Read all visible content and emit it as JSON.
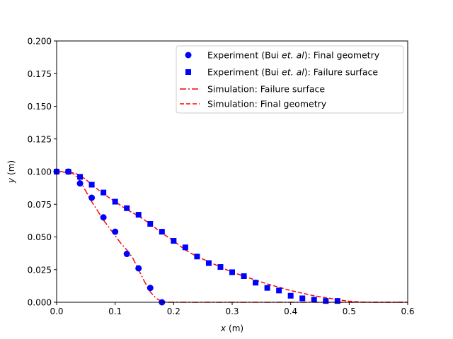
{
  "chart_data": {
    "type": "scatter",
    "xlabel_var": "x",
    "xlabel_unit": "(m)",
    "ylabel_var": "y",
    "ylabel_unit": "(m)",
    "xlim": [
      0,
      0.6
    ],
    "ylim": [
      0,
      0.2
    ],
    "xticks": [
      0.0,
      0.1,
      0.2,
      0.3,
      0.4,
      0.5,
      0.6
    ],
    "xtick_labels": [
      "0.0",
      "0.1",
      "0.2",
      "0.3",
      "0.4",
      "0.5",
      "0.6"
    ],
    "yticks": [
      0.0,
      0.025,
      0.05,
      0.075,
      0.1,
      0.125,
      0.15,
      0.175,
      0.2
    ],
    "ytick_labels": [
      "0.000",
      "0.025",
      "0.050",
      "0.075",
      "0.100",
      "0.125",
      "0.150",
      "0.175",
      "0.200"
    ],
    "grid": false,
    "legend_position": "top-right",
    "series": [
      {
        "legend_prefix": "Experiment (Bui ",
        "legend_italic": "et. al",
        "legend_suffix": "): Final geometry",
        "marker": "circle",
        "color": "#0000ff",
        "x": [
          0.0,
          0.02,
          0.04,
          0.06,
          0.08,
          0.1,
          0.12,
          0.14,
          0.16,
          0.18
        ],
        "y": [
          0.1,
          0.1,
          0.091,
          0.08,
          0.065,
          0.054,
          0.037,
          0.026,
          0.011,
          0.0
        ]
      },
      {
        "legend_prefix": "Experiment (Bui ",
        "legend_italic": "et. al",
        "legend_suffix": "): Failure surface",
        "marker": "square",
        "color": "#0000ff",
        "x": [
          0.0,
          0.02,
          0.04,
          0.06,
          0.08,
          0.1,
          0.12,
          0.14,
          0.16,
          0.18,
          0.2,
          0.22,
          0.24,
          0.26,
          0.28,
          0.3,
          0.32,
          0.34,
          0.36,
          0.38,
          0.4,
          0.42,
          0.44,
          0.46,
          0.48
        ],
        "y": [
          0.1,
          0.1,
          0.096,
          0.09,
          0.084,
          0.077,
          0.072,
          0.067,
          0.06,
          0.054,
          0.047,
          0.042,
          0.035,
          0.03,
          0.027,
          0.023,
          0.02,
          0.015,
          0.011,
          0.009,
          0.005,
          0.003,
          0.002,
          0.001,
          0.001
        ]
      },
      {
        "legend": "Simulation: Failure surface",
        "style": "dashdot",
        "color": "#ff0000",
        "x": [
          0.0,
          0.02,
          0.03,
          0.04,
          0.05,
          0.06,
          0.07,
          0.08,
          0.09,
          0.1,
          0.11,
          0.12,
          0.13,
          0.14,
          0.15,
          0.16,
          0.17,
          0.18,
          0.19,
          0.25,
          0.35,
          0.45,
          0.6
        ],
        "y": [
          0.1,
          0.1,
          0.098,
          0.093,
          0.085,
          0.077,
          0.07,
          0.063,
          0.057,
          0.051,
          0.045,
          0.04,
          0.034,
          0.025,
          0.016,
          0.008,
          0.003,
          0.0005,
          0.0,
          0.0,
          0.0,
          0.0,
          0.0
        ]
      },
      {
        "legend": "Simulation: Final geometry",
        "style": "dashed",
        "color": "#ff0000",
        "x": [
          0.0,
          0.03,
          0.04,
          0.05,
          0.06,
          0.08,
          0.1,
          0.12,
          0.14,
          0.16,
          0.18,
          0.2,
          0.22,
          0.24,
          0.26,
          0.28,
          0.3,
          0.32,
          0.34,
          0.36,
          0.38,
          0.4,
          0.42,
          0.44,
          0.46,
          0.48,
          0.5,
          0.52,
          0.54,
          0.6
        ],
        "y": [
          0.1,
          0.099,
          0.097,
          0.094,
          0.09,
          0.083,
          0.077,
          0.071,
          0.066,
          0.06,
          0.053,
          0.047,
          0.04,
          0.035,
          0.031,
          0.027,
          0.023,
          0.02,
          0.017,
          0.014,
          0.0115,
          0.009,
          0.007,
          0.005,
          0.0035,
          0.002,
          0.0008,
          0.0002,
          0.0,
          0.0
        ]
      }
    ]
  }
}
